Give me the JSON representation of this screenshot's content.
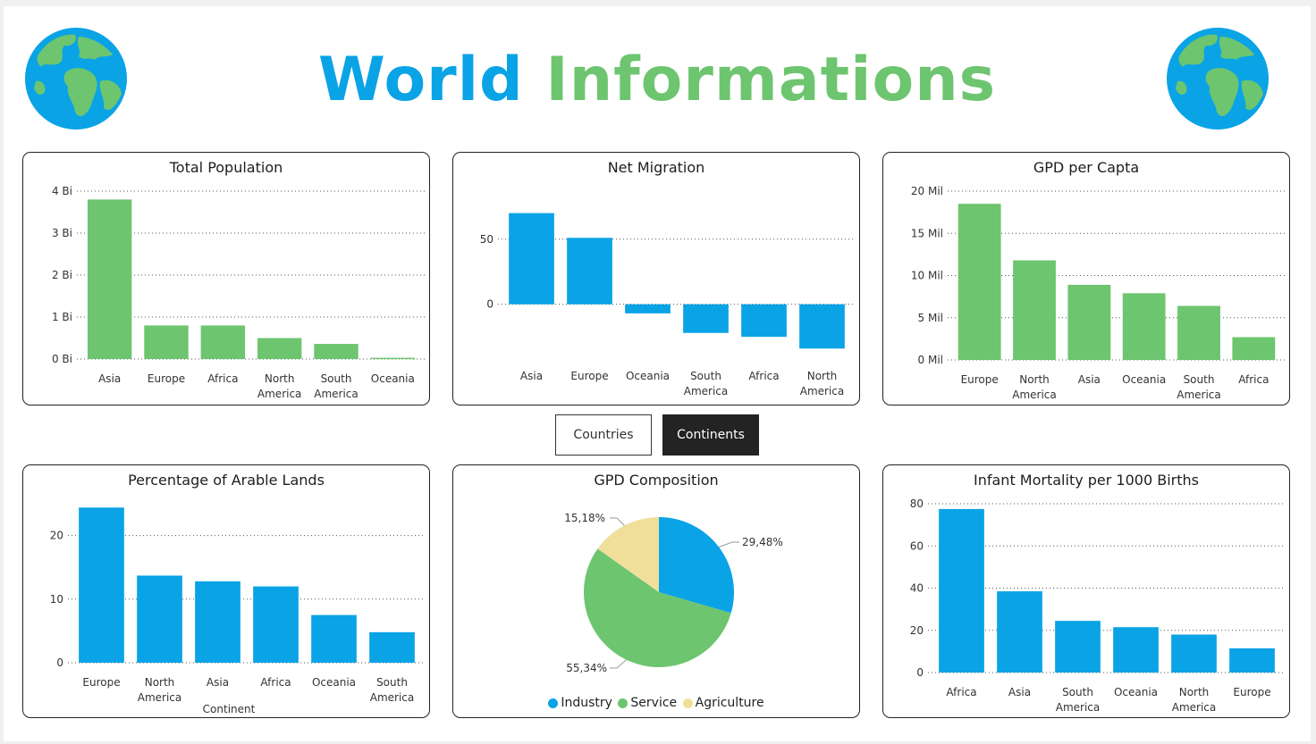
{
  "header": {
    "title_part1": "World",
    "title_part2": "Informations",
    "colors": {
      "blue": "#0aa3e6",
      "green": "#6dc56f"
    }
  },
  "toggles": [
    {
      "label": "Countries",
      "active": false
    },
    {
      "label": "Continents",
      "active": true
    }
  ],
  "chart_data": [
    {
      "id": "total-population",
      "type": "bar",
      "title": "Total Population",
      "categories": [
        [
          "Asia"
        ],
        [
          "Europe"
        ],
        [
          "Africa"
        ],
        [
          "North",
          "America"
        ],
        [
          "South",
          "America"
        ],
        [
          "Oceania"
        ]
      ],
      "values": [
        3.8,
        0.8,
        0.8,
        0.5,
        0.36,
        0.03
      ],
      "ylim": [
        0,
        4
      ],
      "yticks": [
        0,
        1,
        2,
        3,
        4
      ],
      "ytick_labels": [
        "0 Bi",
        "1 Bi",
        "2 Bi",
        "3 Bi",
        "4 Bi"
      ],
      "color": "#6dc56f",
      "xlabel": "",
      "grid": true
    },
    {
      "id": "net-migration",
      "type": "bar",
      "title": "Net Migration",
      "categories": [
        [
          "Asia"
        ],
        [
          "Europe"
        ],
        [
          "Oceania"
        ],
        [
          "South",
          "America"
        ],
        [
          "Africa"
        ],
        [
          "North",
          "America"
        ]
      ],
      "values": [
        70,
        51,
        -7,
        -22,
        -25,
        -34
      ],
      "ylim": [
        -40,
        80
      ],
      "yticks": [
        0,
        50
      ],
      "ytick_labels": [
        "0",
        "50"
      ],
      "color": "#0aa3e6",
      "xlabel": "",
      "grid": true
    },
    {
      "id": "gdp-per-capita",
      "type": "bar",
      "title": "GPD per Capta",
      "categories": [
        [
          "Europe"
        ],
        [
          "North",
          "America"
        ],
        [
          "Asia"
        ],
        [
          "Oceania"
        ],
        [
          "South",
          "America"
        ],
        [
          "Africa"
        ]
      ],
      "values": [
        18.5,
        11.8,
        8.9,
        7.9,
        6.4,
        2.7
      ],
      "ylim": [
        0,
        20
      ],
      "yticks": [
        0,
        5,
        10,
        15,
        20
      ],
      "ytick_labels": [
        "0 Mil",
        "5 Mil",
        "10 Mil",
        "15 Mil",
        "20 Mil"
      ],
      "color": "#6dc56f",
      "xlabel": "",
      "grid": true
    },
    {
      "id": "arable-lands",
      "type": "bar",
      "title": "Percentage of Arable Lands",
      "categories": [
        [
          "Europe"
        ],
        [
          "North",
          "America"
        ],
        [
          "Asia"
        ],
        [
          "Africa"
        ],
        [
          "Oceania"
        ],
        [
          "South",
          "America"
        ]
      ],
      "values": [
        24.4,
        13.7,
        12.8,
        12.0,
        7.5,
        4.8
      ],
      "ylim": [
        0,
        25
      ],
      "yticks": [
        0,
        10,
        20
      ],
      "ytick_labels": [
        "0",
        "10",
        "20"
      ],
      "color": "#0aa3e6",
      "xlabel": "Continent",
      "grid": true
    },
    {
      "id": "gdp-composition",
      "type": "pie",
      "title": "GPD Composition",
      "slices": [
        {
          "label": "Industry",
          "value": 29.48,
          "display": "29,48%",
          "color": "#0aa3e6"
        },
        {
          "label": "Service",
          "value": 55.34,
          "display": "55,34%",
          "color": "#6dc56f"
        },
        {
          "label": "Agriculture",
          "value": 15.18,
          "display": "15,18%",
          "color": "#efdf9a"
        }
      ],
      "legend": "bottom"
    },
    {
      "id": "infant-mortality",
      "type": "bar",
      "title": "Infant Mortality per 1000 Births",
      "categories": [
        [
          "Africa"
        ],
        [
          "Asia"
        ],
        [
          "South",
          "America"
        ],
        [
          "Oceania"
        ],
        [
          "North",
          "America"
        ],
        [
          "Europe"
        ]
      ],
      "values": [
        77.5,
        38.5,
        24.5,
        21.5,
        18.0,
        11.5
      ],
      "ylim": [
        0,
        80
      ],
      "yticks": [
        0,
        20,
        40,
        60,
        80
      ],
      "ytick_labels": [
        "0",
        "20",
        "40",
        "60",
        "80"
      ],
      "color": "#0aa3e6",
      "xlabel": "",
      "grid": true
    }
  ]
}
